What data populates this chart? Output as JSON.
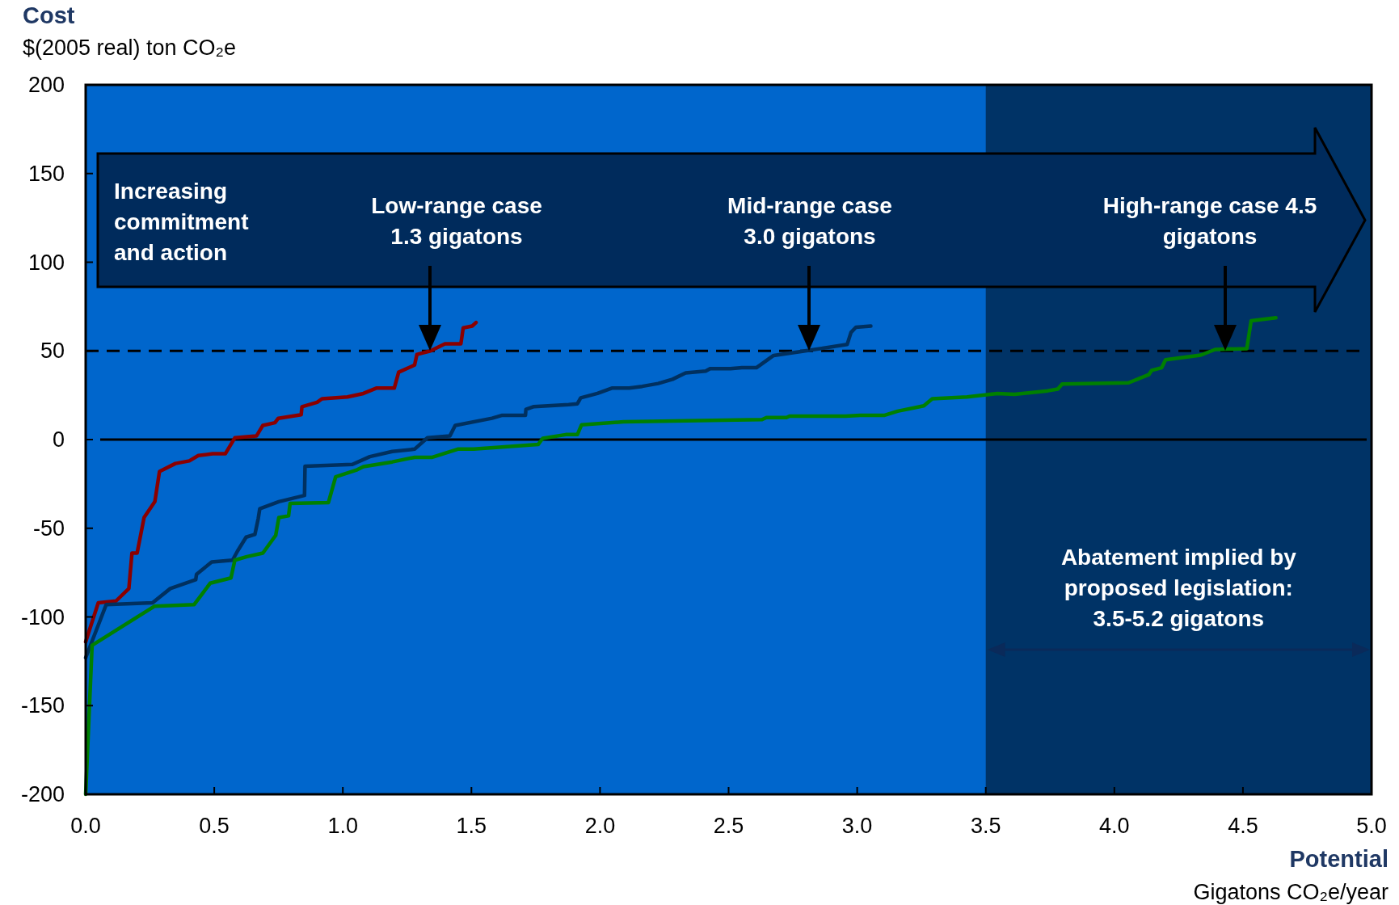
{
  "chart_data": {
    "type": "line",
    "title": "Cost",
    "xlabel": "Potential",
    "annotations": [
      "$(2005 real) ton CO₂e",
      "Gigatons CO₂e/year",
      "Increasing\ncommitment\nand action",
      "Low-range case\n1.3 gigatons",
      "Mid-range case\n3.0 gigatons",
      "High-range case 4.5\ngigatons"
    ],
    "series": [
      {
        "color": "#8b0000",
        "x": [
          0,
          0.049,
          0.118,
          0.168,
          0.18,
          0.2,
          0.227,
          0.269,
          0.287,
          0.349,
          0.403,
          0.438,
          0.494,
          0.543,
          0.58,
          0.664,
          0.689,
          0.736,
          0.749,
          0.838,
          0.841,
          0.9,
          0.919,
          1.018,
          1.08,
          1.13,
          1.2,
          1.217,
          1.279,
          1.288,
          1.341,
          1.397,
          1.459,
          1.468,
          1.503,
          1.518
        ],
        "values": [
          -114,
          -92,
          -91,
          -84,
          -64,
          -64,
          -44,
          -35,
          -18,
          -13.5,
          -12,
          -9,
          -8,
          -8,
          1,
          2,
          8,
          9.5,
          12,
          14,
          18.5,
          21,
          23,
          24,
          26,
          29,
          29,
          38,
          42,
          48,
          50,
          54,
          54,
          63,
          64,
          66
        ]
      },
      {
        "color": "#00305f",
        "x": [
          0,
          0.08,
          0.26,
          0.329,
          0.428,
          0.431,
          0.49,
          0.571,
          0.59,
          0.624,
          0.658,
          0.671,
          0.677,
          0.751,
          0.851,
          0.853,
          1.037,
          1.105,
          1.192,
          1.279,
          1.329,
          1.416,
          1.437,
          1.58,
          1.62,
          1.71,
          1.712,
          1.743,
          1.878,
          1.912,
          1.925,
          1.99,
          2.046,
          2.114,
          2.164,
          2.226,
          2.282,
          2.333,
          2.411,
          2.428,
          2.507,
          2.552,
          2.608,
          2.675,
          2.798,
          2.961,
          2.976,
          2.995,
          3.053
        ],
        "values": [
          -123,
          -93,
          -92,
          -84,
          -79,
          -76,
          -69,
          -68,
          -63,
          -55,
          -53.5,
          -44.5,
          -39,
          -35,
          -31.5,
          -15,
          -14,
          -9.6,
          -6.7,
          -5.4,
          1,
          2,
          8,
          12,
          13.7,
          13.7,
          17,
          18.6,
          19.7,
          20.2,
          23.5,
          26,
          29,
          29,
          30,
          31.6,
          34,
          37.6,
          38.6,
          40,
          40,
          40.5,
          40.5,
          47.4,
          50,
          53.6,
          60.4,
          63.3,
          64
        ]
      },
      {
        "color": "#008000",
        "x": [
          0,
          0.025,
          0.267,
          0.422,
          0.484,
          0.565,
          0.58,
          0.627,
          0.689,
          0.739,
          0.751,
          0.789,
          0.795,
          0.944,
          0.972,
          1.056,
          1.08,
          1.192,
          1.279,
          1.348,
          1.447,
          1.509,
          1.76,
          1.777,
          1.867,
          1.912,
          1.928,
          2.091,
          2.63,
          2.647,
          2.725,
          2.737,
          2.955,
          3.012,
          3.107,
          3.157,
          3.259,
          3.292,
          3.427,
          3.545,
          3.612,
          3.741,
          3.78,
          3.797,
          4.055,
          4.134,
          4.145,
          4.184,
          4.199,
          4.336,
          4.392,
          4.515,
          4.532,
          4.628
        ],
        "values": [
          -200,
          -116,
          -94,
          -93,
          -81,
          -78,
          -68,
          -66,
          -64,
          -54,
          -44,
          -43,
          -36,
          -35.5,
          -21,
          -17,
          -15.3,
          -12.6,
          -10,
          -10,
          -5.4,
          -5.4,
          -2.7,
          0.7,
          2.8,
          2.8,
          8.3,
          10,
          11.3,
          12.4,
          12.4,
          13.2,
          13.2,
          13.7,
          13.7,
          16,
          19,
          23,
          24,
          26,
          25.5,
          27.5,
          28.5,
          31.3,
          32,
          36.6,
          39,
          40.5,
          45,
          47.6,
          50.8,
          51.3,
          67,
          68.7
        ]
      }
    ],
    "xlim": [
      0,
      5
    ],
    "xticks": [
      {
        "value": 0,
        "label": "0.0"
      },
      {
        "value": 0.5,
        "label": "0.5"
      },
      {
        "value": 1,
        "label": "1.0"
      },
      {
        "value": 1.5,
        "label": "1.5"
      },
      {
        "value": 2,
        "label": "2.0"
      },
      {
        "value": 2.5,
        "label": "2.5"
      },
      {
        "value": 3,
        "label": "3.0"
      },
      {
        "value": 3.5,
        "label": "3.5"
      },
      {
        "value": 4,
        "label": "4.0"
      },
      {
        "value": 4.5,
        "label": "4.5"
      },
      {
        "value": 5,
        "label": "5.0"
      }
    ],
    "ylim": [
      -200,
      200
    ],
    "yticks": [
      -200,
      -150,
      -100,
      -50,
      0,
      50,
      100,
      150,
      200
    ],
    "ref_lines": [
      {
        "axis": "y",
        "value": 0,
        "color": "#000000",
        "line_style": "solid"
      },
      {
        "axis": "y",
        "value": 50,
        "color": "#000000",
        "line_style": "dashed"
      }
    ],
    "bands": [
      {
        "axis": "x",
        "from": 3.5,
        "to": 5,
        "label": "Abatement implied by\nproposed legislation:\n3.5-5.2 gigatons",
        "color": "#003366"
      }
    ]
  }
}
